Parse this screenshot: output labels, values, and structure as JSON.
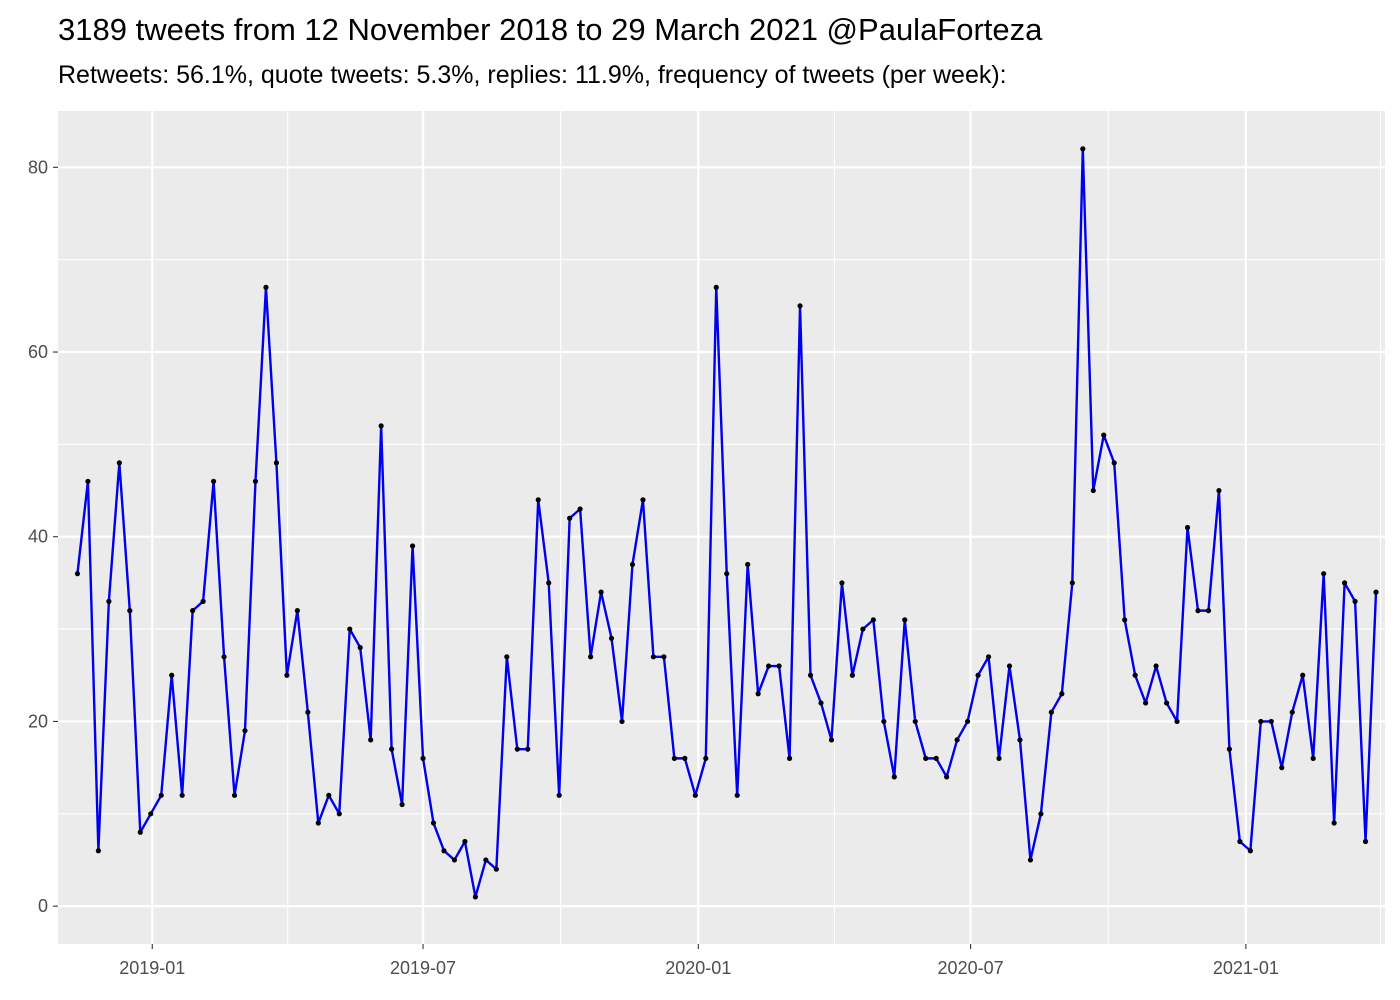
{
  "chart_data": {
    "type": "line",
    "title": "3189 tweets from 12 November 2018 to 29 March 2021 @PaulaForteza",
    "subtitle": "Retweets: 56.1%, quote tweets: 5.3%, replies: 11.9%, frequency of tweets (per week):",
    "xlabel": "",
    "ylabel": "",
    "x_start": "2018-11-12",
    "x_step_days": 7,
    "xlim": [
      "2018-10-30",
      "2021-04-04"
    ],
    "ylim": [
      -4.1,
      86.1
    ],
    "x_ticks": [
      "2019-01",
      "2019-07",
      "2020-01",
      "2020-07",
      "2021-01"
    ],
    "y_ticks": [
      0,
      20,
      40,
      60,
      80
    ],
    "grid": true,
    "legend": "none",
    "colors": {
      "line": "#0000ee",
      "points": "#000000",
      "panel": "#ebebeb",
      "grid": "#ffffff"
    },
    "series": [
      {
        "values": [
          36,
          46,
          6,
          33,
          48,
          32,
          8,
          10,
          12,
          25,
          12,
          32,
          33,
          46,
          27,
          12,
          19,
          46,
          67,
          48,
          25,
          32,
          21,
          9,
          12,
          10,
          30,
          28,
          18,
          52,
          17,
          11,
          39,
          16,
          9,
          6,
          5,
          7,
          1,
          5,
          4,
          27,
          17,
          17,
          44,
          35,
          12,
          42,
          43,
          27,
          34,
          29,
          20,
          37,
          44,
          27,
          27,
          16,
          16,
          12,
          16,
          67,
          36,
          12,
          37,
          23,
          26,
          26,
          16,
          65,
          25,
          22,
          18,
          35,
          25,
          30,
          31,
          20,
          14,
          31,
          20,
          16,
          16,
          14,
          18,
          20,
          25,
          27,
          16,
          26,
          18,
          5,
          10,
          21,
          23,
          35,
          82,
          45,
          51,
          48,
          31,
          25,
          22,
          26,
          22,
          20,
          41,
          32,
          32,
          45,
          17,
          7,
          6,
          20,
          20,
          15,
          21,
          25,
          16,
          36,
          9,
          35,
          33,
          7,
          34
        ]
      }
    ]
  }
}
